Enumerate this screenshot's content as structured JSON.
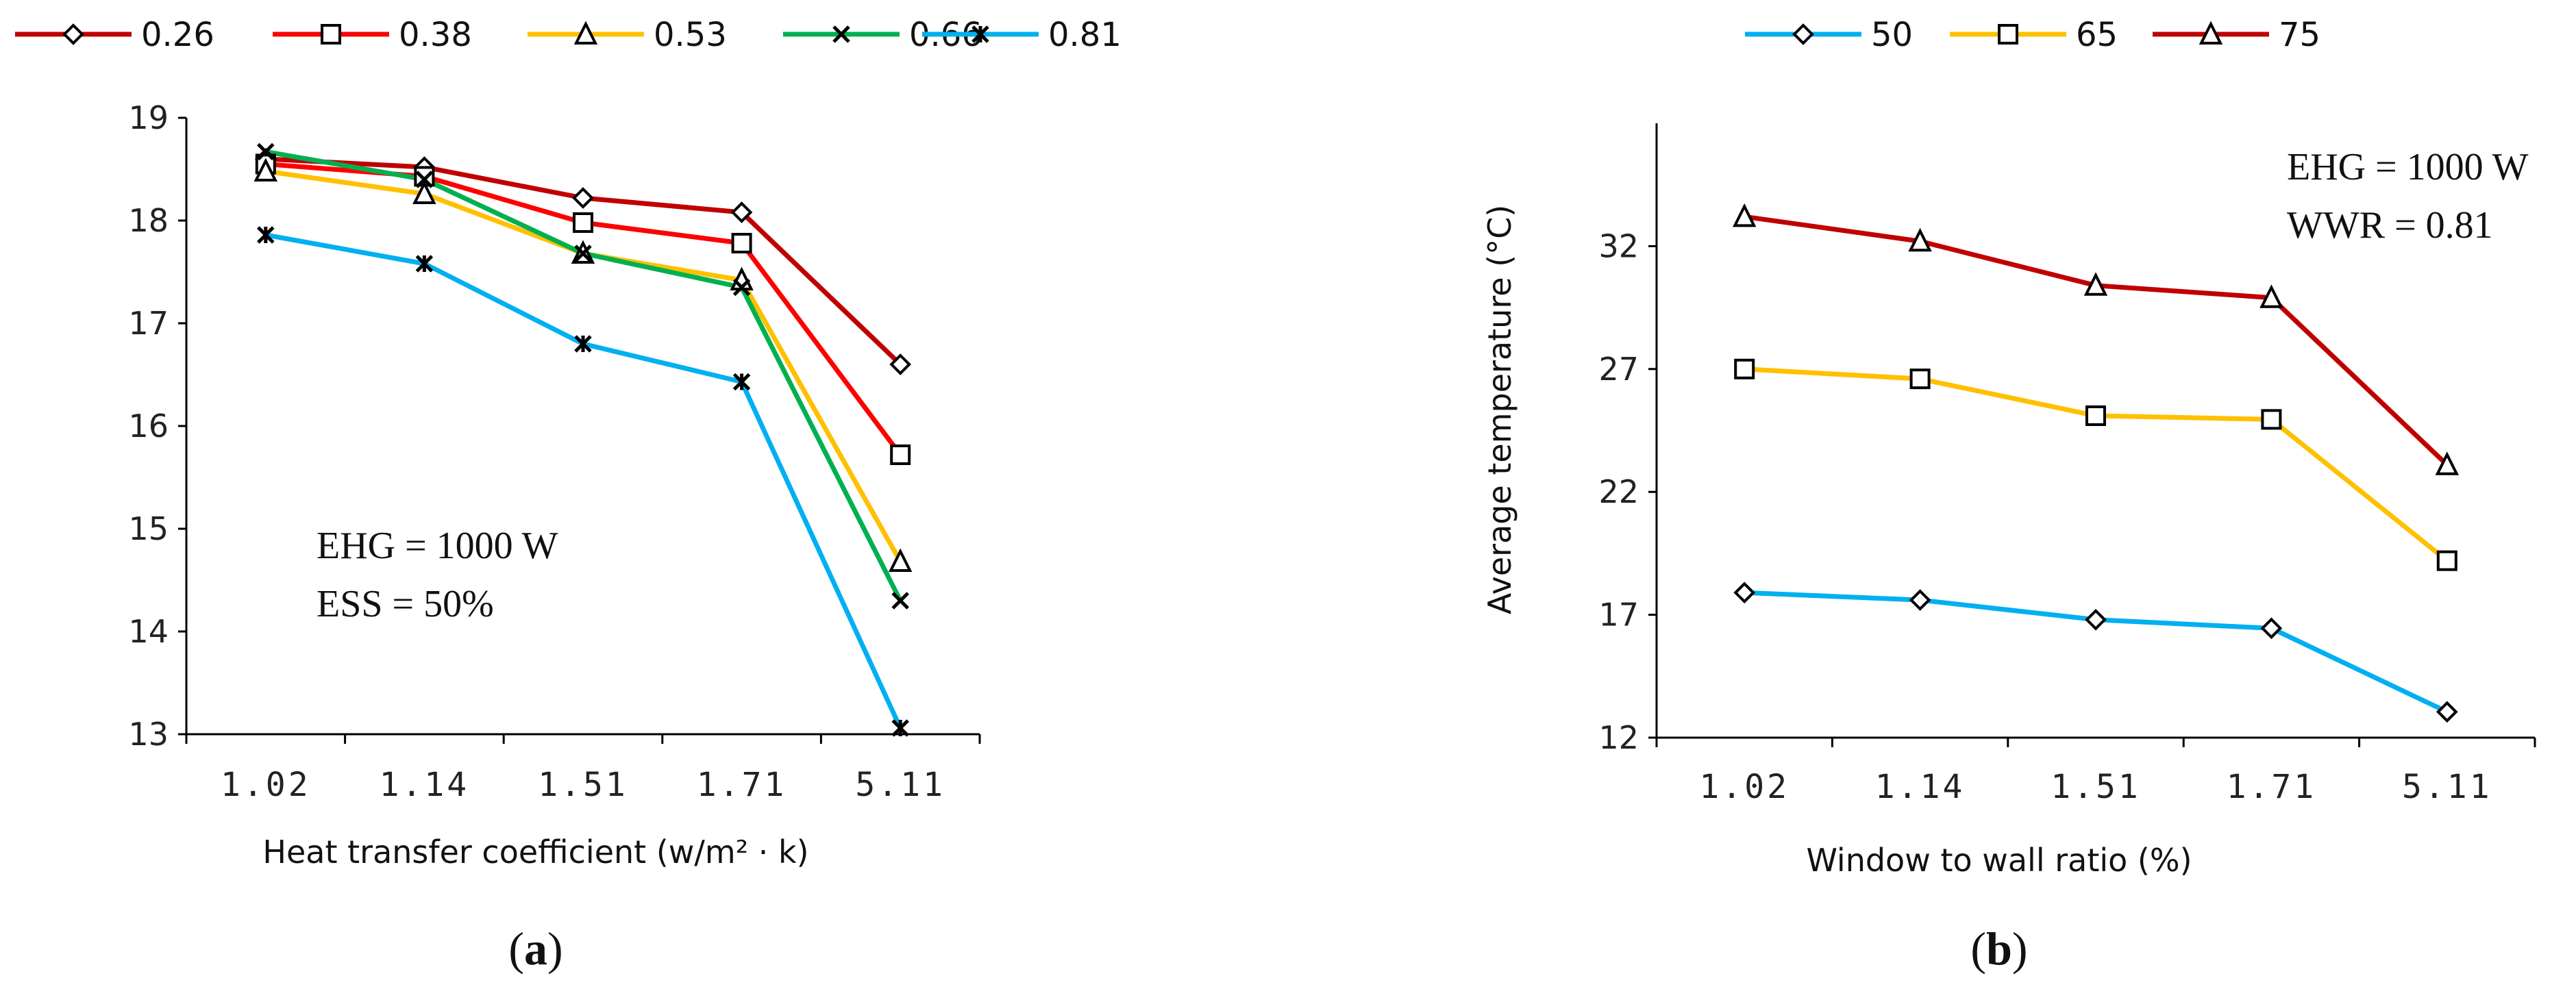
{
  "chart_data": [
    {
      "type": "line",
      "panel": "a",
      "xlabel": "Heat transfer coefficient (w/m² · k)",
      "ylabel": "",
      "categories": [
        "1.02",
        "1.14",
        "1.51",
        "1.71",
        "5.11"
      ],
      "ylim": [
        13,
        19
      ],
      "yticks": [
        "13",
        "14",
        "15",
        "16",
        "17",
        "18",
        "19"
      ],
      "legend_position": "top",
      "series": [
        {
          "name": "0.26",
          "color": "#C00000",
          "marker": "diamond",
          "values": [
            18.6,
            18.52,
            18.22,
            18.08,
            16.6
          ]
        },
        {
          "name": "0.38",
          "color": "#FF0000",
          "marker": "square",
          "values": [
            18.55,
            18.43,
            17.98,
            17.78,
            15.72
          ]
        },
        {
          "name": "0.53",
          "color": "#FFC000",
          "marker": "triangle",
          "values": [
            18.48,
            18.26,
            17.68,
            17.42,
            14.68
          ]
        },
        {
          "name": "0.66",
          "color": "#00B050",
          "marker": "x",
          "values": [
            18.67,
            18.4,
            17.68,
            17.35,
            14.3
          ]
        },
        {
          "name": "0.81",
          "color": "#00B0F0",
          "marker": "asterisk",
          "values": [
            17.86,
            17.58,
            16.8,
            16.43,
            13.06
          ]
        }
      ],
      "annotations": [
        "EHG = 1000 W",
        "ESS = 50%"
      ]
    },
    {
      "type": "line",
      "panel": "b",
      "xlabel": "Window to wall ratio (%)",
      "ylabel": "Average temperature (°C)",
      "categories": [
        "1.02",
        "1.14",
        "1.51",
        "1.71",
        "5.11"
      ],
      "ylim": [
        12,
        37
      ],
      "yticks": [
        "12",
        "17",
        "22",
        "27",
        "32"
      ],
      "legend_position": "top",
      "series": [
        {
          "name": "50",
          "color": "#00B0F0",
          "marker": "diamond",
          "values": [
            17.9,
            17.6,
            16.8,
            16.45,
            13.05
          ]
        },
        {
          "name": "65",
          "color": "#FFC000",
          "marker": "square",
          "values": [
            27.0,
            26.6,
            25.1,
            24.95,
            19.2
          ]
        },
        {
          "name": "75",
          "color": "#C00000",
          "marker": "triangle",
          "values": [
            33.2,
            32.2,
            30.4,
            29.9,
            23.1
          ]
        }
      ],
      "annotations": [
        "EHG = 1000 W",
        "WWR = 0.81"
      ]
    }
  ],
  "panel_labels": {
    "a": {
      "open": "(",
      "letter": "a",
      "close": ")"
    },
    "b": {
      "open": "(",
      "letter": "b",
      "close": ")"
    }
  }
}
